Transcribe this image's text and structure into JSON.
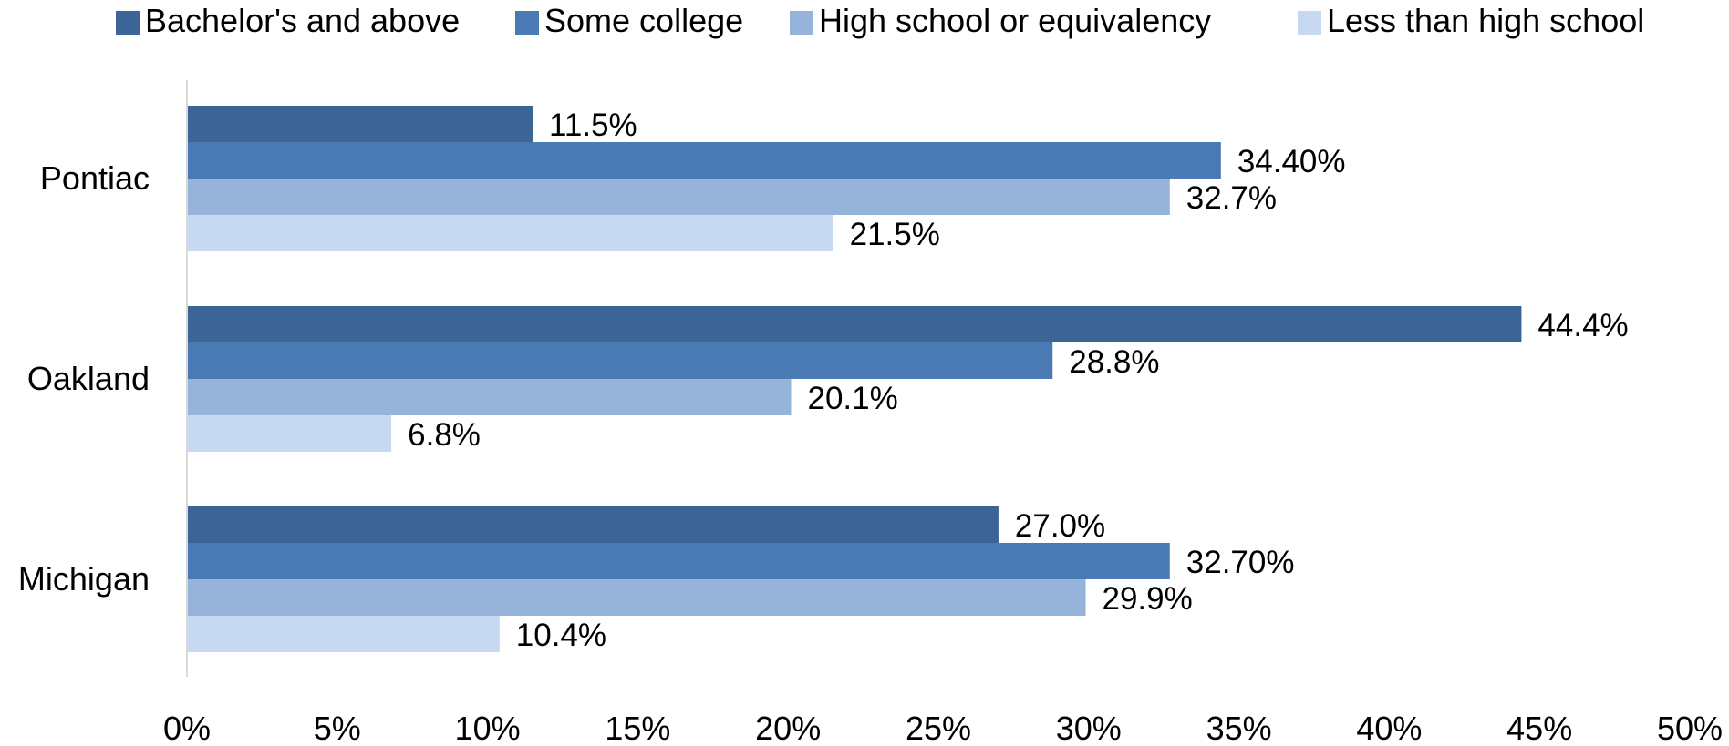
{
  "chart_data": {
    "type": "bar",
    "orientation": "horizontal",
    "title": "",
    "xlabel": "",
    "ylabel": "",
    "categories": [
      "Pontiac",
      "Oakland",
      "Michigan"
    ],
    "series": [
      {
        "name": "Bachelor's and above",
        "color": "#3c6494",
        "values": [
          11.5,
          44.4,
          27.0
        ],
        "labels": [
          "11.5%",
          "44.4%",
          "27.0%"
        ]
      },
      {
        "name": "Some college",
        "color": "#4a7ab4",
        "values": [
          34.4,
          28.8,
          32.7
        ],
        "labels": [
          "34.40%",
          "28.8%",
          "32.70%"
        ]
      },
      {
        "name": "High school or equivalency",
        "color": "#96b4d9",
        "values": [
          32.7,
          20.1,
          29.9
        ],
        "labels": [
          "32.7%",
          "20.1%",
          "29.9%"
        ]
      },
      {
        "name": "Less than high school",
        "color": "#c6d9f1",
        "values": [
          21.5,
          6.8,
          10.4
        ],
        "labels": [
          "21.5%",
          "6.8%",
          "10.4%"
        ]
      }
    ],
    "xlim": [
      0,
      50
    ],
    "xticks": [
      0,
      5,
      10,
      15,
      20,
      25,
      30,
      35,
      40,
      45,
      50
    ],
    "xtick_labels": [
      "0%",
      "5%",
      "10%",
      "15%",
      "20%",
      "25%",
      "30%",
      "35%",
      "40%",
      "45%",
      "50%"
    ],
    "grid": false,
    "legend_position": "top"
  }
}
